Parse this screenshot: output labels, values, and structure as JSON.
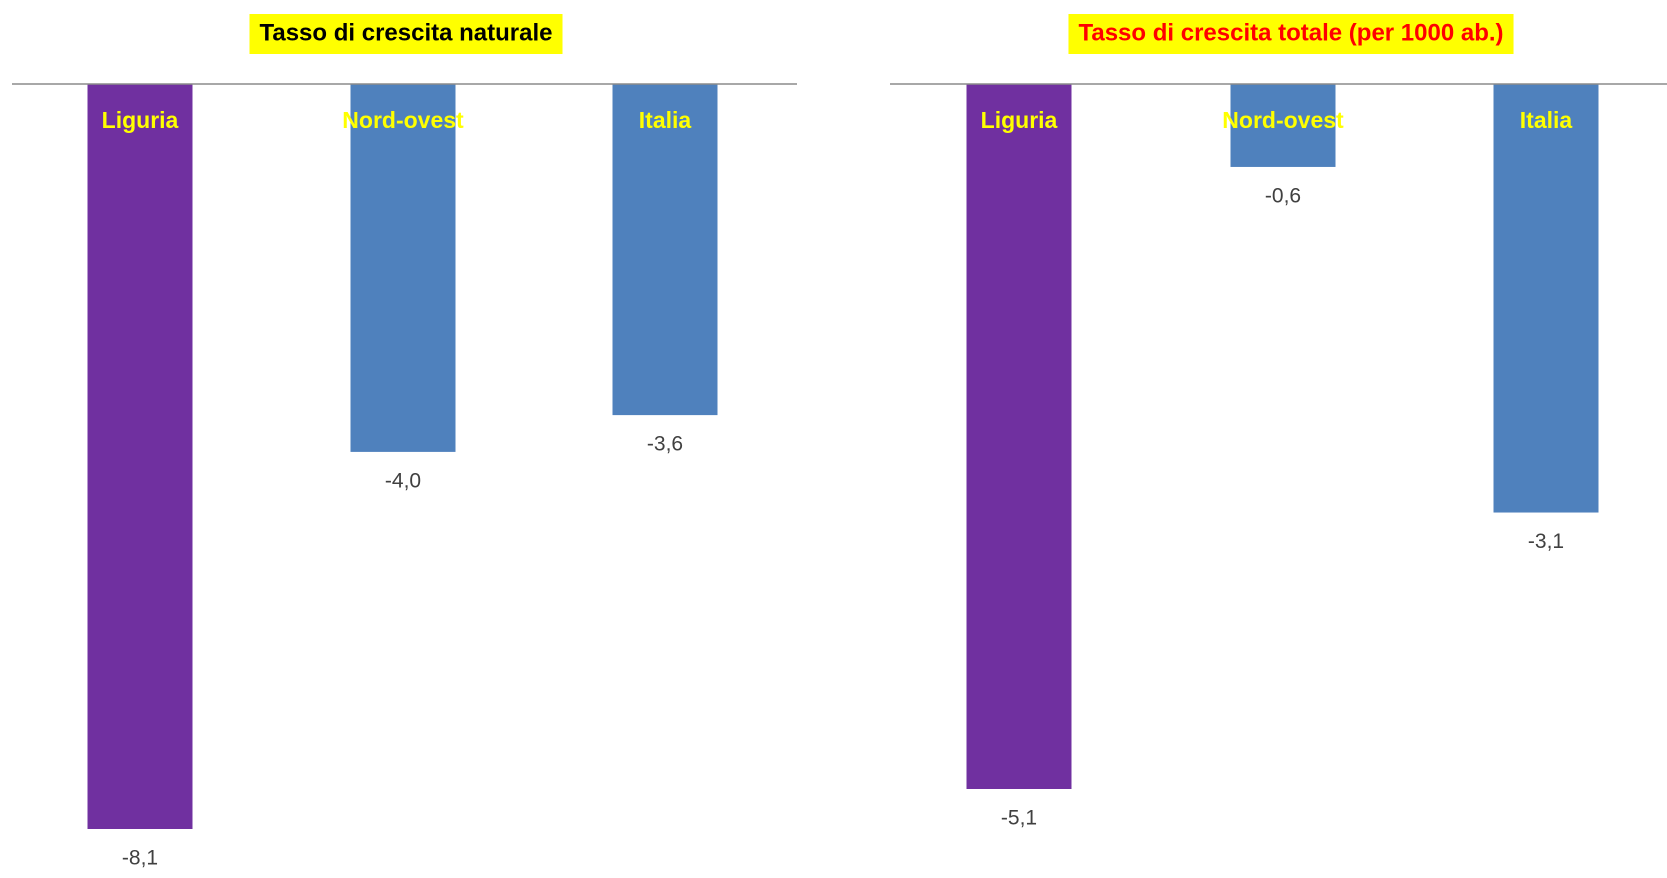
{
  "chart_data": [
    {
      "type": "bar",
      "title": "Tasso di crescita naturale",
      "title_color": "#000000",
      "title_background": "#FFFF00",
      "categories": [
        "Liguria",
        "Nord-ovest",
        "Italia"
      ],
      "values": [
        -8.1,
        -4.0,
        -3.6
      ],
      "data_labels": [
        "-8,1",
        "-4,0",
        "-3,6"
      ],
      "bar_colors": [
        "#7030A0",
        "#4F81BD",
        "#4F81BD"
      ],
      "category_label_color": "#FFFF00",
      "ylim": [
        -8.1,
        0
      ],
      "grid": false
    },
    {
      "type": "bar",
      "title": "Tasso di crescita totale (per 1000 ab.)",
      "title_color": "#FF0000",
      "title_background": "#FFFF00",
      "categories": [
        "Liguria",
        "Nord-ovest",
        "Italia"
      ],
      "values": [
        -5.1,
        -0.6,
        -3.1
      ],
      "data_labels": [
        "-5,1",
        "-0,6",
        "-3,1"
      ],
      "bar_colors": [
        "#7030A0",
        "#4F81BD",
        "#4F81BD"
      ],
      "category_label_color": "#FFFF00",
      "ylim": [
        -5.1,
        0
      ],
      "grid": false
    }
  ]
}
